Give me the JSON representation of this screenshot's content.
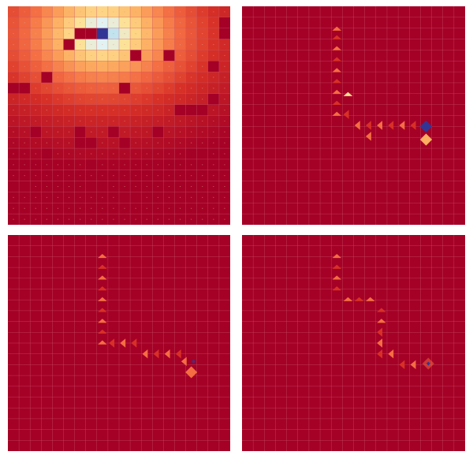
{
  "grid": {
    "cols": 20,
    "rows": 20
  },
  "colors": {
    "background": "#a50026",
    "gridline": "#c8566a",
    "dot": "#e79a86",
    "wall": "#a50026",
    "agent": "#313695",
    "goal": "#f46d43",
    "goal_light": "#fdae61",
    "arrow_light": "#f46d43",
    "arrow_dark": "#d73027",
    "arrow_pale": "#fee090"
  },
  "panels": [
    {
      "kind": "value-heatmap",
      "peak": {
        "col": 8,
        "row": 2
      },
      "walls": [
        [
          6,
          4
        ],
        [
          7,
          3
        ],
        [
          8,
          3
        ],
        [
          20,
          2
        ],
        [
          20,
          3
        ],
        [
          12,
          5
        ],
        [
          15,
          5
        ],
        [
          4,
          7
        ],
        [
          19,
          6
        ],
        [
          1,
          8
        ],
        [
          2,
          8
        ],
        [
          11,
          8
        ],
        [
          16,
          10
        ],
        [
          17,
          10
        ],
        [
          18,
          10
        ],
        [
          19,
          9
        ],
        [
          3,
          12
        ],
        [
          7,
          12
        ],
        [
          7,
          13
        ],
        [
          8,
          13
        ],
        [
          10,
          12
        ],
        [
          14,
          12
        ],
        [
          4,
          14
        ],
        [
          17,
          14
        ],
        [
          18,
          14
        ],
        [
          8,
          15
        ],
        [
          11,
          13
        ],
        [
          1,
          17
        ],
        [
          2,
          17
        ],
        [
          8,
          17
        ],
        [
          9,
          17
        ],
        [
          11,
          18
        ],
        [
          12,
          18
        ]
      ]
    },
    {
      "kind": "policy",
      "agent": {
        "col": 17,
        "row": 11.5
      },
      "goal": {
        "col": 17,
        "row": 12.7
      },
      "path": [
        [
          9,
          2.6
        ],
        [
          9,
          3.4
        ],
        [
          9,
          4.4
        ],
        [
          9,
          5.4
        ],
        [
          9,
          6.4
        ],
        [
          9,
          7.4
        ],
        [
          9,
          8.4
        ],
        [
          9,
          9.4
        ],
        [
          9,
          10.4
        ],
        [
          10,
          10.4
        ],
        [
          11,
          11.4
        ],
        [
          12,
          11.4
        ],
        [
          13,
          11.4
        ],
        [
          14,
          11.4
        ],
        [
          15,
          11.4
        ],
        [
          16,
          11.4
        ],
        [
          12,
          12.4
        ]
      ],
      "pale": [
        [
          10,
          8.6
        ]
      ]
    },
    {
      "kind": "policy",
      "agent": {
        "col": 17.2,
        "row": 12.2
      },
      "goal": {
        "col": 17,
        "row": 13.2
      },
      "path": [
        [
          9,
          2.5
        ],
        [
          9,
          3.5
        ],
        [
          9,
          4.5
        ],
        [
          9,
          5.5
        ],
        [
          9,
          6.5
        ],
        [
          9,
          7.5
        ],
        [
          9,
          8.5
        ],
        [
          9,
          9.5
        ],
        [
          9,
          10.5
        ],
        [
          10,
          10.5
        ],
        [
          11,
          10.5
        ],
        [
          12,
          10.5
        ],
        [
          13,
          11.5
        ],
        [
          14,
          11.5
        ],
        [
          15,
          11.5
        ],
        [
          16,
          11.5
        ],
        [
          16.5,
          12.2
        ]
      ],
      "pale": []
    },
    {
      "kind": "policy",
      "agent": {
        "col": 17.2,
        "row": 12.4
      },
      "goal": {
        "col": 17.2,
        "row": 12.4
      },
      "path": [
        [
          9,
          2.5
        ],
        [
          9,
          3.5
        ],
        [
          9,
          4.5
        ],
        [
          9,
          5.5
        ],
        [
          10,
          6.5
        ],
        [
          11,
          6.5
        ],
        [
          12,
          6.5
        ],
        [
          13,
          7.5
        ],
        [
          13,
          8.5
        ],
        [
          13,
          9.5
        ],
        [
          13,
          10.5
        ],
        [
          13,
          11.5
        ],
        [
          14,
          11.5
        ],
        [
          15,
          12.5
        ],
        [
          16,
          12.5
        ]
      ],
      "pale": []
    }
  ]
}
